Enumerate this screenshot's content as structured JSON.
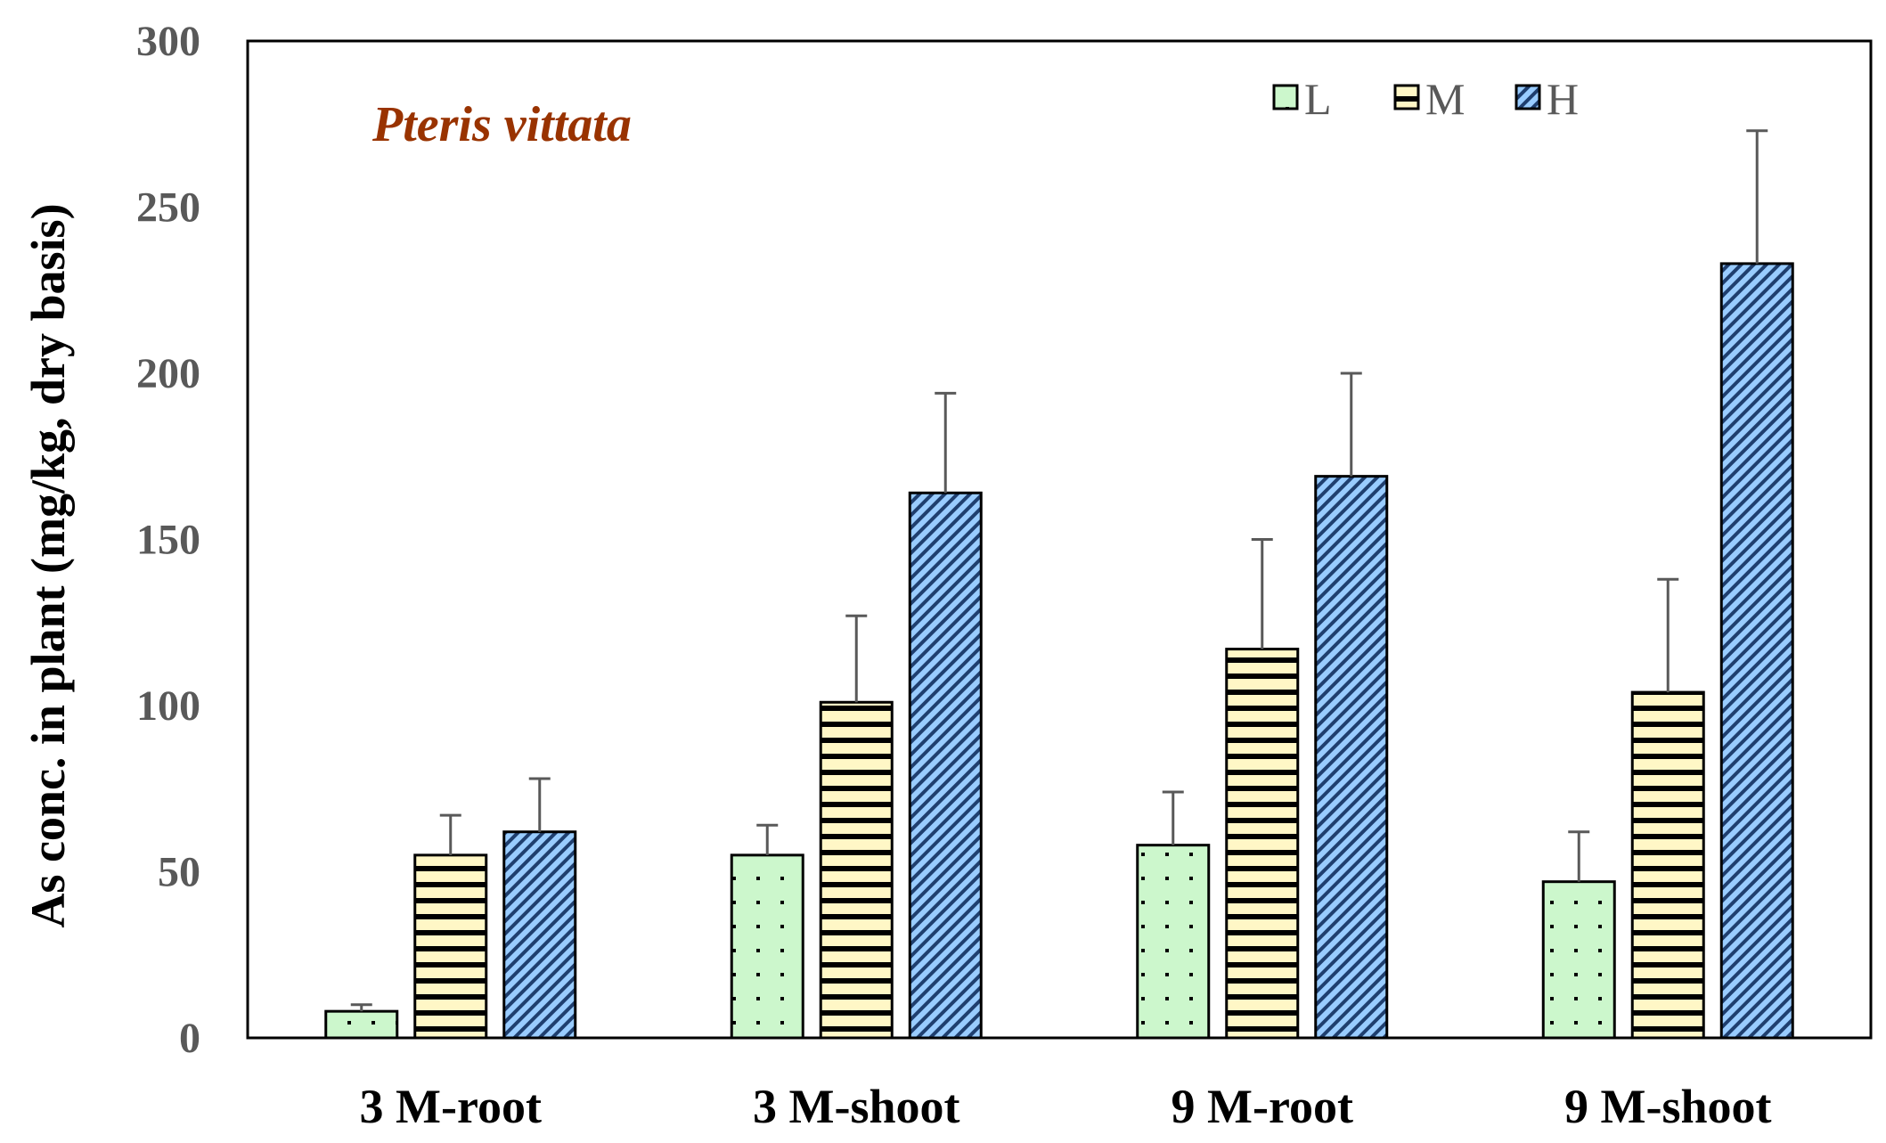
{
  "chart_data": {
    "type": "bar",
    "title": "",
    "annotation": "Pteris vittata",
    "xlabel": "",
    "ylabel": "As conc. in plant (mg/kg, dry basis)",
    "ylim": [
      0,
      300
    ],
    "yticks": [
      0,
      50,
      100,
      150,
      200,
      250,
      300
    ],
    "categories": [
      "3 M-root",
      "3 M-shoot",
      "9 M-root",
      "9 M-shoot"
    ],
    "series": [
      {
        "name": "L",
        "values": [
          8,
          55,
          58,
          47
        ],
        "errors": [
          2,
          9,
          16,
          15
        ],
        "color": "#ccf7cc",
        "pattern": "dots"
      },
      {
        "name": "M",
        "values": [
          55,
          101,
          117,
          104
        ],
        "errors": [
          12,
          26,
          33,
          34
        ],
        "color": "#fff7c6",
        "pattern": "horizontal-lines"
      },
      {
        "name": "H",
        "values": [
          62,
          164,
          169,
          233
        ],
        "errors": [
          16,
          30,
          31,
          40
        ],
        "color": "#99ccff",
        "pattern": "diagonal-stripes"
      }
    ],
    "legend_position": "top-right",
    "grid": false,
    "colors": {
      "annotation": "#993300",
      "axis": "#000000",
      "tick_text": "#595959",
      "error_bar": "#595959"
    }
  }
}
